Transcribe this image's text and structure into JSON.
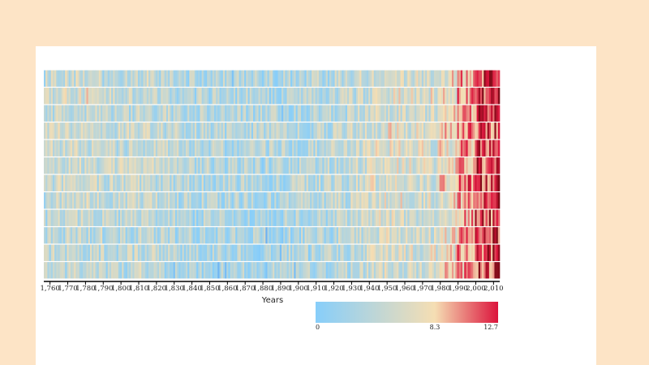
{
  "chart_data": {
    "type": "heatmap",
    "title": "",
    "xlabel": "Years",
    "ylabel": "",
    "x_range": [
      1757,
      2013
    ],
    "x_ticks": [
      "1,760",
      "1,770",
      "1,780",
      "1,790",
      "1,800",
      "1,810",
      "1,820",
      "1,830",
      "1,840",
      "1,850",
      "1,860",
      "1,870",
      "1,880",
      "1,890",
      "1,900",
      "1,910",
      "1,920",
      "1,930",
      "1,940",
      "1,950",
      "1,960",
      "1,970",
      "1,980",
      "1,990",
      "2,000",
      "2,010"
    ],
    "rows": 12,
    "decades": [
      1750,
      1760,
      1770,
      1780,
      1790,
      1800,
      1810,
      1820,
      1830,
      1840,
      1850,
      1860,
      1870,
      1880,
      1890,
      1900,
      1910,
      1920,
      1930,
      1940,
      1950,
      1960,
      1970,
      1980,
      1990,
      2000,
      2010
    ],
    "values": [
      [
        4.2,
        5.0,
        5.2,
        4.8,
        4.0,
        4.4,
        5.0,
        3.8,
        3.4,
        3.2,
        3.0,
        3.0,
        3.2,
        3.0,
        3.0,
        3.4,
        3.6,
        4.4,
        5.0,
        5.6,
        5.8,
        5.4,
        5.6,
        7.0,
        9.8,
        11.6,
        12.2
      ],
      [
        4.6,
        5.4,
        5.6,
        6.2,
        4.4,
        4.6,
        5.2,
        4.2,
        3.6,
        3.4,
        3.2,
        3.2,
        3.4,
        3.0,
        3.2,
        3.4,
        3.8,
        4.0,
        4.6,
        5.4,
        6.0,
        5.8,
        6.0,
        7.4,
        10.0,
        11.8,
        12.0
      ],
      [
        3.8,
        4.6,
        4.8,
        4.4,
        4.0,
        4.0,
        4.4,
        3.8,
        3.4,
        3.2,
        3.2,
        3.0,
        3.0,
        3.0,
        3.0,
        3.2,
        3.4,
        4.0,
        4.8,
        5.4,
        5.8,
        5.6,
        5.4,
        7.6,
        10.4,
        11.8,
        12.4
      ],
      [
        4.8,
        5.4,
        5.8,
        5.0,
        4.6,
        4.8,
        5.0,
        4.2,
        3.8,
        3.6,
        3.4,
        3.2,
        3.2,
        3.2,
        3.2,
        3.6,
        3.8,
        4.4,
        5.0,
        5.8,
        6.4,
        5.8,
        5.6,
        7.8,
        9.6,
        11.2,
        11.8
      ],
      [
        4.6,
        5.2,
        5.0,
        4.8,
        4.4,
        4.6,
        4.6,
        4.0,
        3.6,
        3.6,
        3.4,
        3.4,
        3.6,
        3.4,
        3.4,
        3.8,
        4.0,
        4.6,
        5.2,
        5.8,
        6.2,
        5.8,
        5.8,
        7.0,
        9.4,
        11.4,
        12.0
      ],
      [
        5.4,
        5.6,
        5.2,
        5.0,
        4.6,
        5.0,
        4.8,
        4.2,
        3.8,
        3.6,
        3.4,
        3.6,
        3.4,
        3.2,
        3.4,
        3.6,
        3.8,
        4.4,
        5.0,
        5.6,
        6.0,
        5.6,
        5.6,
        7.2,
        9.6,
        11.6,
        12.2
      ],
      [
        4.4,
        5.0,
        5.2,
        4.8,
        4.6,
        4.6,
        5.0,
        4.2,
        3.8,
        3.8,
        3.6,
        3.6,
        3.6,
        3.4,
        3.4,
        3.6,
        4.0,
        4.4,
        4.8,
        5.6,
        6.0,
        5.8,
        5.8,
        7.6,
        10.2,
        11.8,
        12.2
      ],
      [
        4.0,
        4.8,
        5.0,
        5.2,
        4.6,
        4.6,
        4.8,
        4.0,
        3.6,
        3.4,
        3.4,
        3.2,
        3.2,
        3.2,
        3.2,
        3.6,
        3.6,
        4.2,
        4.8,
        5.6,
        6.2,
        5.6,
        5.6,
        7.2,
        9.8,
        11.6,
        12.0
      ],
      [
        3.8,
        4.4,
        4.6,
        4.6,
        4.2,
        4.2,
        4.4,
        3.8,
        3.4,
        3.2,
        3.2,
        3.0,
        3.0,
        3.0,
        3.2,
        3.4,
        3.6,
        4.2,
        5.0,
        5.4,
        6.0,
        5.6,
        5.4,
        7.0,
        9.6,
        11.4,
        11.8
      ],
      [
        3.4,
        4.0,
        4.2,
        4.0,
        3.8,
        4.0,
        4.2,
        3.6,
        3.2,
        3.0,
        3.0,
        2.8,
        3.0,
        2.8,
        3.0,
        3.2,
        3.4,
        4.0,
        4.6,
        5.2,
        5.6,
        5.4,
        5.2,
        6.8,
        9.4,
        11.6,
        12.2
      ],
      [
        3.6,
        4.2,
        4.4,
        4.2,
        3.8,
        4.0,
        4.4,
        3.6,
        3.2,
        3.0,
        3.0,
        3.0,
        3.0,
        2.8,
        3.0,
        3.2,
        3.4,
        4.0,
        4.6,
        5.4,
        5.8,
        5.6,
        5.6,
        7.4,
        9.8,
        11.8,
        12.4
      ],
      [
        3.2,
        4.0,
        4.6,
        4.2,
        3.6,
        3.8,
        4.6,
        3.6,
        3.0,
        3.0,
        2.8,
        2.8,
        3.0,
        2.8,
        2.8,
        3.2,
        3.4,
        4.0,
        4.8,
        5.4,
        5.8,
        5.4,
        5.4,
        7.2,
        9.8,
        11.6,
        12.4
      ]
    ],
    "color_scale": {
      "stops": [
        0,
        8.3,
        12.7
      ],
      "colors": [
        "#87cefa",
        "#f5deb3",
        "#dc143c"
      ],
      "labels": [
        "0",
        "8.3",
        "12.7"
      ]
    },
    "legend_placement": "bottom-right",
    "grid": false
  }
}
